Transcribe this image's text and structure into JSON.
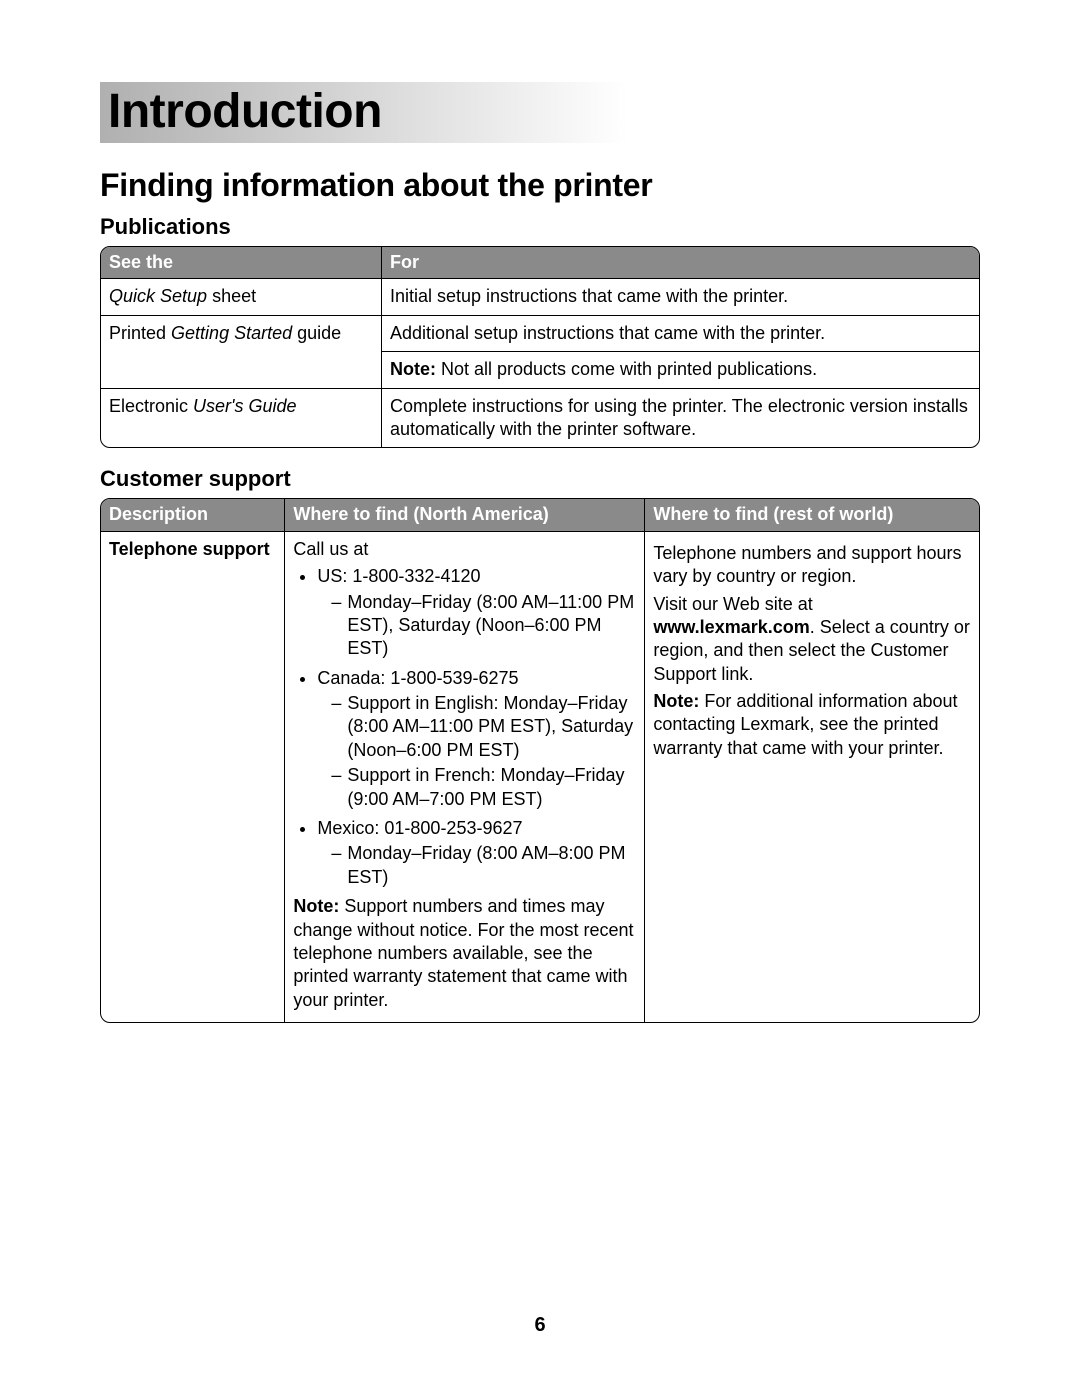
{
  "page_number": "6",
  "chapter_title": "Introduction",
  "section_title": "Finding information about the printer",
  "publications": {
    "heading": "Publications",
    "headers": {
      "c1": "See the",
      "c2": "For"
    },
    "rows": [
      {
        "c1_pre_italic": "Quick Setup",
        "c1_post": " sheet",
        "c2": "Initial setup instructions that came with the printer."
      },
      {
        "c1_pre": "Printed ",
        "c1_italic": "Getting Started",
        "c1_post": " guide",
        "c2": "Additional setup instructions that came with the printer.",
        "note_label": "Note: ",
        "note_text": "Not all products come with printed publications."
      },
      {
        "c1_pre": "Electronic ",
        "c1_italic": "User's Guide",
        "c2": "Complete instructions for using the printer. The electronic version installs automatically with the printer software."
      }
    ]
  },
  "support": {
    "heading": "Customer support",
    "headers": {
      "c1": "Description",
      "c2": "Where to find (North America)",
      "c3": "Where to find (rest of world)"
    },
    "row": {
      "desc": "Telephone support",
      "na": {
        "lead": "Call us at",
        "us_label": "US: 1-800-332-4120",
        "us_hours": "Monday–Friday (8:00 AM–11:00 PM EST), Saturday (Noon–6:00 PM EST)",
        "ca_label": "Canada: 1-800-539-6275",
        "ca_en": "Support in English: Monday–Friday (8:00 AM–11:00 PM EST), Saturday (Noon–6:00 PM EST)",
        "ca_fr": "Support in French: Monday–Friday (9:00 AM–7:00 PM EST)",
        "mx_label": "Mexico: 01-800-253-9627",
        "mx_hours": "Monday–Friday (8:00 AM–8:00 PM EST)",
        "note_label": "Note: ",
        "note_text": "Support numbers and times may change without notice. For the most recent telephone numbers available, see the printed warranty statement that came with your printer."
      },
      "row_world": {
        "p1": "Telephone numbers and support hours vary by country or region.",
        "p2_pre": "Visit our Web site at ",
        "p2_bold": "www.lexmark.com",
        "p2_post": ". Select a country or region, and then select the Customer Support link.",
        "note_label": "Note: ",
        "note_text": "For additional information about contacting Lexmark, see the printed warranty that came with your printer."
      }
    }
  }
}
